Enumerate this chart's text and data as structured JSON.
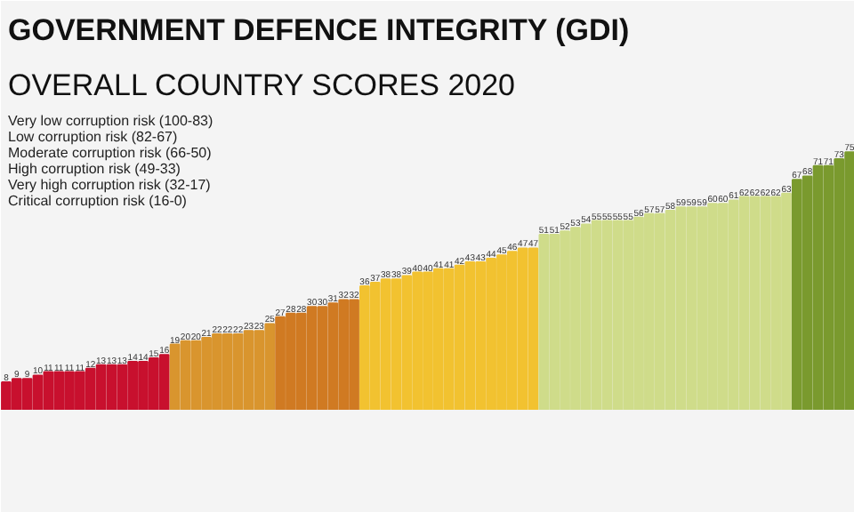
{
  "chart_data": {
    "type": "bar",
    "title": "GOVERNMENT DEFENCE INTEGRITY (GDI)",
    "subtitle": "OVERALL COUNTRY SCORES 2020",
    "categories": [
      null,
      null,
      null,
      null,
      null,
      null,
      null,
      null,
      null,
      null,
      null,
      null,
      null,
      null,
      null,
      null,
      null,
      null,
      null,
      null,
      null,
      null,
      null,
      null,
      null,
      null,
      null,
      null,
      null,
      null,
      null,
      null,
      null,
      null,
      null,
      null,
      null,
      null,
      null,
      null,
      null,
      null,
      null,
      null,
      null,
      null,
      null,
      null,
      null,
      null,
      null,
      null,
      null,
      null,
      null,
      null,
      null,
      null,
      null,
      null,
      null,
      null,
      null,
      null,
      null,
      null,
      null,
      null,
      null,
      null,
      null,
      null,
      null,
      null,
      null,
      null,
      null,
      null,
      null,
      null,
      null
    ],
    "values": [
      8,
      9,
      9,
      10,
      11,
      11,
      11,
      11,
      12,
      13,
      13,
      13,
      14,
      14,
      15,
      16,
      19,
      20,
      20,
      21,
      22,
      22,
      22,
      23,
      23,
      25,
      27,
      28,
      28,
      30,
      30,
      31,
      32,
      32,
      36,
      37,
      38,
      38,
      39,
      40,
      40,
      41,
      41,
      42,
      43,
      43,
      44,
      45,
      46,
      47,
      47,
      51,
      51,
      52,
      53,
      54,
      55,
      55,
      55,
      55,
      56,
      57,
      57,
      58,
      59,
      59,
      59,
      60,
      60,
      61,
      62,
      62,
      62,
      62,
      63,
      67,
      68,
      71,
      71,
      73,
      75
    ],
    "colors": [
      "#c8102e",
      "#c8102e",
      "#c8102e",
      "#c8102e",
      "#c8102e",
      "#c8102e",
      "#c8102e",
      "#c8102e",
      "#c8102e",
      "#c8102e",
      "#c8102e",
      "#c8102e",
      "#c8102e",
      "#c8102e",
      "#c8102e",
      "#c8102e",
      "#d9952e",
      "#d9952e",
      "#d9952e",
      "#d9952e",
      "#d9952e",
      "#d9952e",
      "#d9952e",
      "#d9952e",
      "#d9952e",
      "#d9952e",
      "#d07a22",
      "#d07a22",
      "#d07a22",
      "#d07a22",
      "#d07a22",
      "#d07a22",
      "#d07a22",
      "#d07a22",
      "#f2c230",
      "#f2c230",
      "#f2c230",
      "#f2c230",
      "#f2c230",
      "#f2c230",
      "#f2c230",
      "#f2c230",
      "#f2c230",
      "#f2c230",
      "#f2c230",
      "#f2c230",
      "#f2c230",
      "#f2c230",
      "#f2c230",
      "#f2c230",
      "#f2c230",
      "#cfdc8a",
      "#cfdc8a",
      "#cfdc8a",
      "#cfdc8a",
      "#cfdc8a",
      "#cfdc8a",
      "#cfdc8a",
      "#cfdc8a",
      "#cfdc8a",
      "#cfdc8a",
      "#cfdc8a",
      "#cfdc8a",
      "#cfdc8a",
      "#cfdc8a",
      "#cfdc8a",
      "#cfdc8a",
      "#cfdc8a",
      "#cfdc8a",
      "#cfdc8a",
      "#cfdc8a",
      "#cfdc8a",
      "#cfdc8a",
      "#cfdc8a",
      "#cfdc8a",
      "#7a9a2e",
      "#7a9a2e",
      "#7a9a2e",
      "#7a9a2e",
      "#7a9a2e",
      "#7a9a2e"
    ],
    "data_labels": true,
    "annotations": [
      "Very low corruption risk (100-83)",
      "Low corruption risk (82-67)",
      "Moderate corruption risk (66-50)",
      "High corruption risk (49-33)",
      "Very high corruption risk (32-17)",
      "Critical corruption risk (16-0)"
    ]
  }
}
